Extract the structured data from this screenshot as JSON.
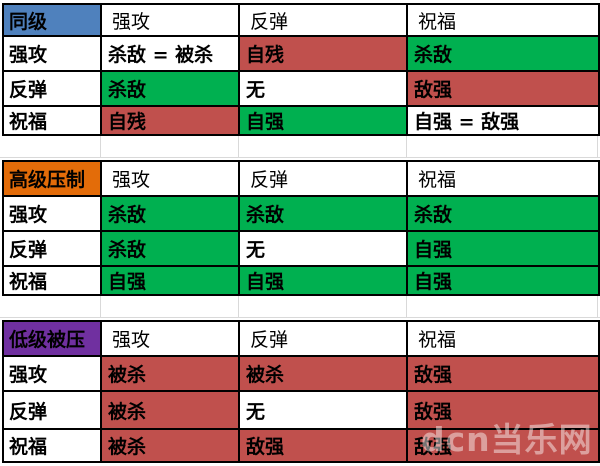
{
  "watermark": {
    "text": "dcn当乐网"
  },
  "colors": {
    "green": "#00B050",
    "red": "#C0504D",
    "white": "#FFFFFF",
    "blue": "#4F81BD",
    "orange": "#E36C09",
    "purple": "#7030A0",
    "border": "#000000",
    "gridline": "#D9D9D9"
  },
  "chart_data": [
    {
      "type": "table",
      "title": "同级",
      "header_bg": "#4F81BD",
      "columns": [
        "强攻",
        "反弹",
        "祝福"
      ],
      "rows": [
        {
          "label": "强攻",
          "cells": [
            {
              "text": "杀敌 = 被杀",
              "bg": "white"
            },
            {
              "text": "自残",
              "bg": "red"
            },
            {
              "text": "杀敌",
              "bg": "green"
            }
          ]
        },
        {
          "label": "反弹",
          "cells": [
            {
              "text": "杀敌",
              "bg": "green"
            },
            {
              "text": "无",
              "bg": "white"
            },
            {
              "text": "敌强",
              "bg": "red"
            }
          ]
        },
        {
          "label": "祝福",
          "cells": [
            {
              "text": "自残",
              "bg": "red"
            },
            {
              "text": "自强",
              "bg": "green"
            },
            {
              "text": "自强 = 敌强",
              "bg": "white"
            }
          ]
        }
      ]
    },
    {
      "type": "table",
      "title": "高级压制",
      "header_bg": "#E36C09",
      "columns": [
        "强攻",
        "反弹",
        "祝福"
      ],
      "rows": [
        {
          "label": "强攻",
          "cells": [
            {
              "text": "杀敌",
              "bg": "green"
            },
            {
              "text": "杀敌",
              "bg": "green"
            },
            {
              "text": "杀敌",
              "bg": "green"
            }
          ]
        },
        {
          "label": "反弹",
          "cells": [
            {
              "text": "杀敌",
              "bg": "green"
            },
            {
              "text": "无",
              "bg": "white"
            },
            {
              "text": "自强",
              "bg": "green"
            }
          ]
        },
        {
          "label": "祝福",
          "cells": [
            {
              "text": "自强",
              "bg": "green"
            },
            {
              "text": "自强",
              "bg": "green"
            },
            {
              "text": "自强",
              "bg": "green"
            }
          ]
        }
      ]
    },
    {
      "type": "table",
      "title": "低级被压",
      "header_bg": "#7030A0",
      "columns": [
        "强攻",
        "反弹",
        "祝福"
      ],
      "rows": [
        {
          "label": "强攻",
          "cells": [
            {
              "text": "被杀",
              "bg": "red"
            },
            {
              "text": "被杀",
              "bg": "red"
            },
            {
              "text": "敌强",
              "bg": "red"
            }
          ]
        },
        {
          "label": "反弹",
          "cells": [
            {
              "text": "被杀",
              "bg": "red"
            },
            {
              "text": "无",
              "bg": "white"
            },
            {
              "text": "敌强",
              "bg": "red"
            }
          ]
        },
        {
          "label": "祝福",
          "cells": [
            {
              "text": "被杀",
              "bg": "red"
            },
            {
              "text": "敌强",
              "bg": "red"
            },
            {
              "text": "敌强",
              "bg": "red"
            }
          ]
        }
      ]
    }
  ]
}
